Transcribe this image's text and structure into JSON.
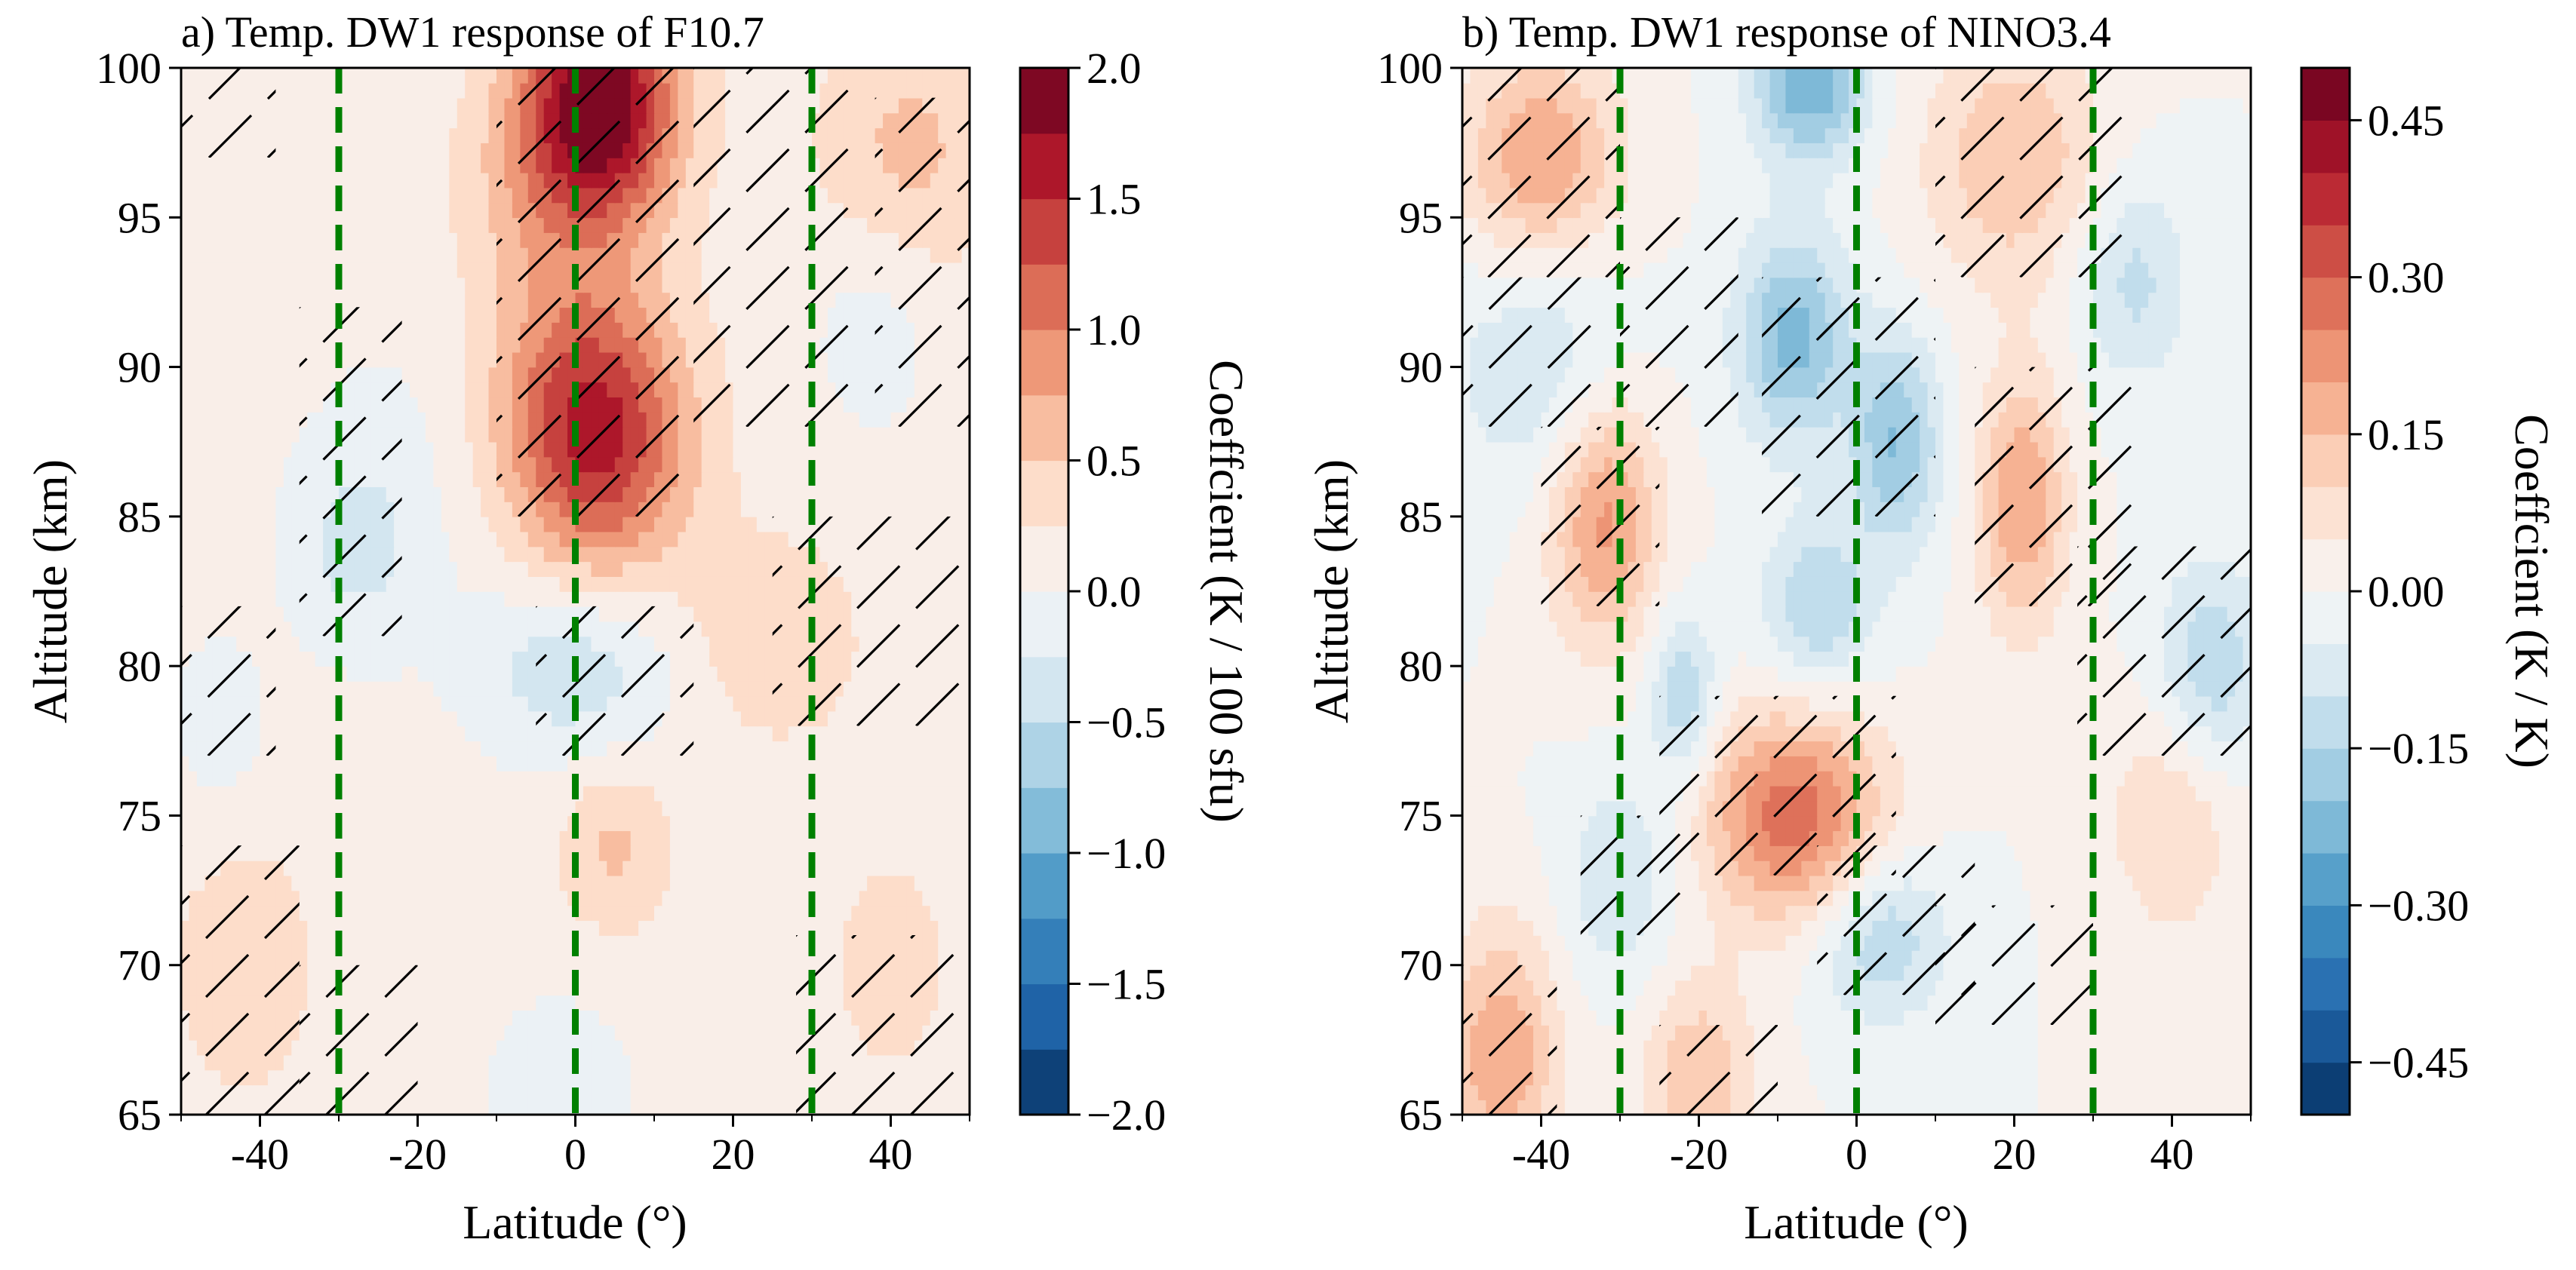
{
  "chart_data": [
    {
      "type": "heatmap",
      "title": "a) Temp. DW1 response of  F10.7",
      "xlabel": "Latitude (°)",
      "ylabel": "Altitude (km)",
      "xlim": [
        -50,
        50
      ],
      "ylim": [
        65,
        100
      ],
      "xticks": [
        -40,
        -20,
        0,
        20,
        40
      ],
      "xtick_labels": [
        "-40",
        "-20",
        "0",
        "20",
        "40"
      ],
      "yticks": [
        65,
        70,
        75,
        80,
        85,
        90,
        95,
        100
      ],
      "ytick_labels": [
        "65",
        "70",
        "75",
        "80",
        "85",
        "90",
        "95",
        "100"
      ],
      "reference_lines_x": [
        -30,
        0,
        30
      ],
      "reference_line_color": "#008000",
      "colorbar": {
        "label": "Coeffcient (K / 100 sfu)",
        "min": -2.0,
        "max": 2.0,
        "levels": 16,
        "ticks": [
          -2.0,
          -1.5,
          -1.0,
          -0.5,
          0.0,
          0.5,
          1.0,
          1.5,
          2.0
        ],
        "tick_labels": [
          "−2.0",
          "−1.5",
          "−1.0",
          "−0.5",
          "0.0",
          "0.5",
          "1.0",
          "1.5",
          "2.0"
        ]
      },
      "baseline": 0.1,
      "features": [
        {
          "lat": 3,
          "alt": 99,
          "value": 1.9,
          "sx": 7,
          "sy": 2.8
        },
        {
          "lat": -4,
          "alt": 96,
          "value": 0.35,
          "sx": 8,
          "sy": 2.5
        },
        {
          "lat": 3,
          "alt": 87.5,
          "value": 1.3,
          "sx": 8,
          "sy": 3.2
        },
        {
          "lat": -2,
          "alt": 90,
          "value": 0.4,
          "sx": 9,
          "sy": 3.5
        },
        {
          "lat": 0,
          "alt": 80,
          "value": -0.55,
          "sx": 9,
          "sy": 2.2
        },
        {
          "lat": 5,
          "alt": 74,
          "value": 0.45,
          "sx": 5,
          "sy": 2.0
        },
        {
          "lat": 42,
          "alt": 97,
          "value": 0.5,
          "sx": 8,
          "sy": 3.0
        },
        {
          "lat": 25,
          "alt": 81,
          "value": 0.35,
          "sx": 8,
          "sy": 2.5
        },
        {
          "lat": -28,
          "alt": 84,
          "value": -0.4,
          "sx": 6,
          "sy": 2.5
        },
        {
          "lat": 38,
          "alt": 92,
          "value": -0.25,
          "sx": 6,
          "sy": 3.0
        },
        {
          "lat": -18,
          "alt": 88,
          "value": -0.15,
          "sx": 10,
          "sy": 4.0
        },
        {
          "lat": -45,
          "alt": 78,
          "value": -0.3,
          "sx": 4,
          "sy": 2.0
        },
        {
          "lat": -2,
          "alt": 66,
          "value": -0.3,
          "sx": 6,
          "sy": 2.0
        },
        {
          "lat": -42,
          "alt": 70,
          "value": 0.25,
          "sx": 8,
          "sy": 4.0
        },
        {
          "lat": 40,
          "alt": 70,
          "value": 0.2,
          "sx": 8,
          "sy": 4.0
        }
      ],
      "hatch_regions": [
        {
          "lat0": -10,
          "lat1": 15,
          "alt0": 85,
          "alt1": 100
        },
        {
          "lat0": 15,
          "lat1": 35,
          "alt0": 88,
          "alt1": 100
        },
        {
          "lat0": 38,
          "lat1": 50,
          "alt0": 88,
          "alt1": 99
        },
        {
          "lat0": -50,
          "lat1": -38,
          "alt0": 97,
          "alt1": 100
        },
        {
          "lat0": -35,
          "lat1": -22,
          "alt0": 81,
          "alt1": 92
        },
        {
          "lat0": -50,
          "lat1": -38,
          "alt0": 77,
          "alt1": 82
        },
        {
          "lat0": -5,
          "lat1": 15,
          "alt0": 77,
          "alt1": 82
        },
        {
          "lat0": 25,
          "lat1": 50,
          "alt0": 78,
          "alt1": 85
        },
        {
          "lat0": -50,
          "lat1": -35,
          "alt0": 65,
          "alt1": 74
        },
        {
          "lat0": -35,
          "lat1": -20,
          "alt0": 65,
          "alt1": 70
        },
        {
          "lat0": 28,
          "lat1": 50,
          "alt0": 65,
          "alt1": 71
        }
      ]
    },
    {
      "type": "heatmap",
      "title": "b) Temp. DW1 response of  NINO3.4",
      "xlabel": "Latitude (°)",
      "ylabel": "Altitude (km)",
      "xlim": [
        -50,
        50
      ],
      "ylim": [
        65,
        100
      ],
      "xticks": [
        -40,
        -20,
        0,
        20,
        40
      ],
      "xtick_labels": [
        "-40",
        "-20",
        "0",
        "20",
        "40"
      ],
      "yticks": [
        65,
        70,
        75,
        80,
        85,
        90,
        95,
        100
      ],
      "ytick_labels": [
        "65",
        "70",
        "75",
        "80",
        "85",
        "90",
        "95",
        "100"
      ],
      "reference_lines_x": [
        -30,
        0,
        30
      ],
      "reference_line_color": "#008000",
      "colorbar": {
        "label": "Coeffcient (K / K)",
        "min": -0.5,
        "max": 0.5,
        "levels": 20,
        "ticks": [
          -0.45,
          -0.3,
          -0.15,
          0.0,
          0.15,
          0.3,
          0.45
        ],
        "tick_labels": [
          "−0.45",
          "−0.30",
          "−0.15",
          "0.00",
          "0.15",
          "0.30",
          "0.45"
        ]
      },
      "baseline": 0.0,
      "features": [
        {
          "lat": -6,
          "alt": 99.5,
          "value": -0.25,
          "sx": 5,
          "sy": 1.8
        },
        {
          "lat": -40,
          "alt": 97,
          "value": 0.2,
          "sx": 7,
          "sy": 2.5
        },
        {
          "lat": 20,
          "alt": 97,
          "value": 0.15,
          "sx": 8,
          "sy": 3.0
        },
        {
          "lat": -8,
          "alt": 91,
          "value": -0.22,
          "sx": 5,
          "sy": 2.5
        },
        {
          "lat": 5,
          "alt": 87.5,
          "value": -0.2,
          "sx": 4,
          "sy": 2.5
        },
        {
          "lat": -5,
          "alt": 82,
          "value": -0.15,
          "sx": 5,
          "sy": 2.0
        },
        {
          "lat": -32,
          "alt": 85,
          "value": 0.22,
          "sx": 5,
          "sy": 3.0
        },
        {
          "lat": 21,
          "alt": 85.5,
          "value": 0.2,
          "sx": 4,
          "sy": 3.0
        },
        {
          "lat": 35,
          "alt": 93,
          "value": -0.12,
          "sx": 5,
          "sy": 2.5
        },
        {
          "lat": -40,
          "alt": 90,
          "value": -0.1,
          "sx": 8,
          "sy": 3.0
        },
        {
          "lat": 45,
          "alt": 80,
          "value": -0.15,
          "sx": 5,
          "sy": 2.5
        },
        {
          "lat": -22,
          "alt": 79,
          "value": -0.15,
          "sx": 3,
          "sy": 2.0
        },
        {
          "lat": -8,
          "alt": 75,
          "value": 0.28,
          "sx": 8,
          "sy": 2.5
        },
        {
          "lat": 3,
          "alt": 71,
          "value": -0.15,
          "sx": 6,
          "sy": 2.0
        },
        {
          "lat": -45,
          "alt": 67,
          "value": 0.2,
          "sx": 5,
          "sy": 3.0
        },
        {
          "lat": -20,
          "alt": 66,
          "value": 0.15,
          "sx": 5,
          "sy": 2.5
        },
        {
          "lat": 40,
          "alt": 75,
          "value": 0.1,
          "sx": 6,
          "sy": 3.0
        },
        {
          "lat": -30,
          "alt": 73,
          "value": -0.1,
          "sx": 5,
          "sy": 2.5
        }
      ],
      "hatch_regions": [
        {
          "lat0": -50,
          "lat1": -30,
          "alt0": 93,
          "alt1": 100
        },
        {
          "lat0": 10,
          "lat1": 35,
          "alt0": 93,
          "alt1": 100
        },
        {
          "lat0": -50,
          "lat1": -32,
          "alt0": 88,
          "alt1": 93
        },
        {
          "lat0": -30,
          "lat1": -15,
          "alt0": 88,
          "alt1": 95
        },
        {
          "lat0": -12,
          "lat1": 10,
          "alt0": 85,
          "alt1": 93
        },
        {
          "lat0": -40,
          "lat1": -25,
          "alt0": 82,
          "alt1": 88
        },
        {
          "lat0": 15,
          "lat1": 35,
          "alt0": 82,
          "alt1": 90
        },
        {
          "lat0": 28,
          "lat1": 50,
          "alt0": 77,
          "alt1": 84
        },
        {
          "lat0": -25,
          "lat1": 5,
          "alt0": 73,
          "alt1": 79
        },
        {
          "lat0": -35,
          "lat1": -22,
          "alt0": 71,
          "alt1": 75
        },
        {
          "lat0": -5,
          "lat1": 15,
          "alt0": 69,
          "alt1": 74
        },
        {
          "lat0": 10,
          "lat1": 30,
          "alt0": 68,
          "alt1": 72
        },
        {
          "lat0": -50,
          "lat1": -38,
          "alt0": 65,
          "alt1": 70
        },
        {
          "lat0": -25,
          "lat1": -10,
          "alt0": 65,
          "alt1": 68
        }
      ]
    }
  ]
}
